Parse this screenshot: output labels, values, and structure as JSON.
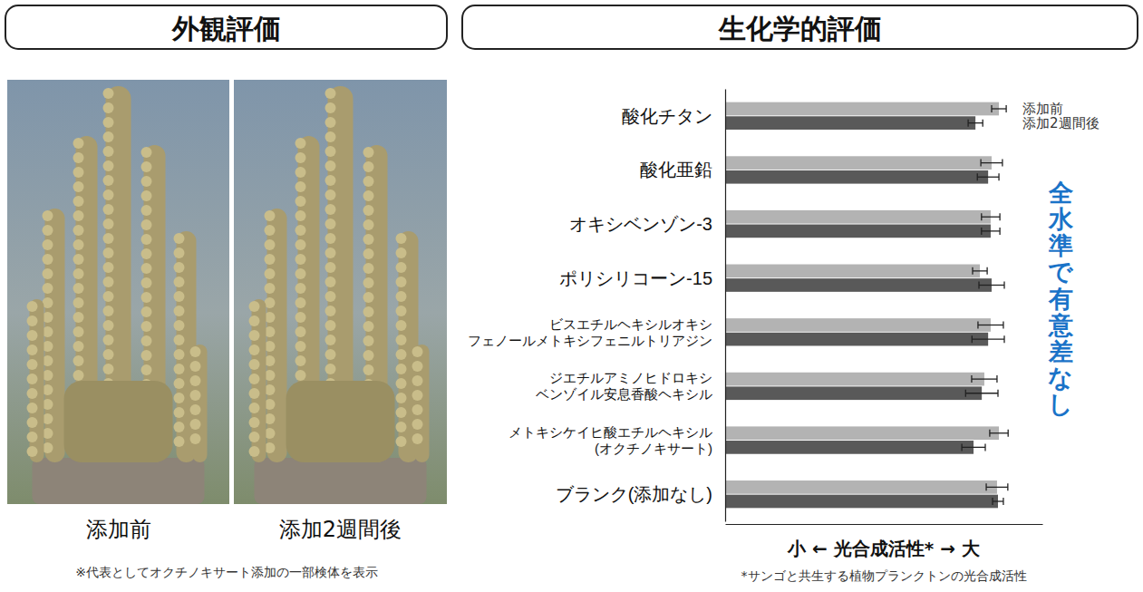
{
  "chart_data": {
    "type": "bar",
    "orientation": "horizontal",
    "title": "生化学的評価",
    "categories": [
      "酸化チタン",
      "酸化亜鉛",
      "オキシベンゾン-3",
      "ポリシリコーン-15",
      "ビスエチルヘキシルオキシ\nフェノールメトキシフェニルトリアジン",
      "ジエチルアミノヒドロキシ\nベンゾイル安息香酸ヘキシル",
      "メトキシケイヒ酸エチルヘキシル\n(オクチノキサート)",
      "ブランク(添加なし)"
    ],
    "series": [
      {
        "name": "添加前",
        "color": "#b3b3b3",
        "values": [
          86.3,
          84.0,
          83.7,
          80.3,
          83.7,
          81.7,
          86.3,
          85.7
        ],
        "errors": [
          2.3,
          3.4,
          2.9,
          2.3,
          4.0,
          4.0,
          2.9,
          3.4
        ]
      },
      {
        "name": "添加2週間後",
        "color": "#595959",
        "values": [
          78.9,
          82.9,
          83.7,
          84.0,
          82.9,
          80.9,
          78.3,
          86.0
        ],
        "errors": [
          2.3,
          3.4,
          2.9,
          4.0,
          5.1,
          5.1,
          3.7,
          1.7
        ]
      }
    ],
    "xlabel": "小 ← 光合成活性* → 大",
    "xlim": [
      0,
      100
    ],
    "xticks": [],
    "tick_labels": "y",
    "grid": false,
    "legend": "top-right",
    "annotations": [
      "全水準で有意差なし"
    ],
    "footnote": "*サンゴと共生する植物プランクトンの光合成活性"
  },
  "photo_panel": {
    "title": "外観評価",
    "captions": [
      "添加前",
      "添加2週間後"
    ],
    "note": "※代表としてオクチノキサート添加の一部検体を表示"
  }
}
